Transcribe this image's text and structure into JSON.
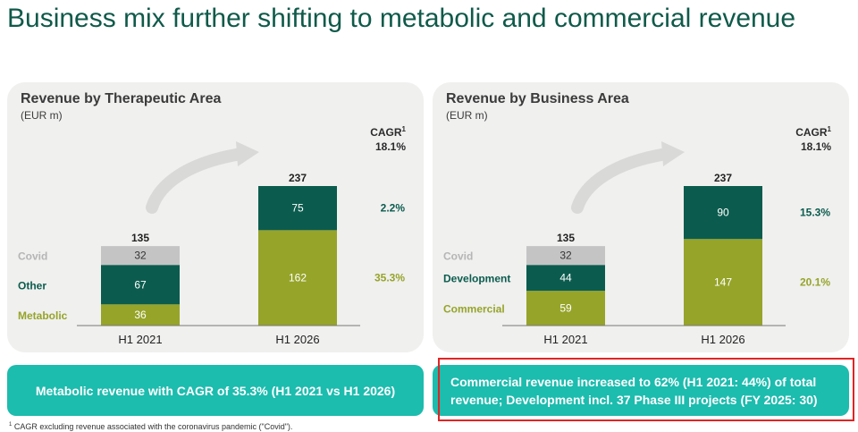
{
  "title": "Business mix further shifting to metabolic and commercial revenue",
  "colors": {
    "covid": "#c4c4c4",
    "dark_green": "#0b5c4e",
    "olive": "#96a429",
    "teal_box": "#1cbcae"
  },
  "chart_data": [
    {
      "type": "bar",
      "title": "Revenue by Therapeutic Area",
      "unit": "(EUR m)",
      "categories": [
        "H1 2021",
        "H1 2026"
      ],
      "stacked": true,
      "series": [
        {
          "name": "Metabolic",
          "values": [
            36,
            162
          ],
          "color": "#96a429"
        },
        {
          "name": "Other",
          "values": [
            67,
            75
          ],
          "color": "#0b5c4e"
        },
        {
          "name": "Covid",
          "values": [
            32,
            0
          ],
          "color": "#c4c4c4"
        }
      ],
      "totals": [
        "135",
        "237"
      ],
      "cagr_header": "CAGR",
      "cagr_total": "18.1%",
      "cagr_values": [
        {
          "series": "Other",
          "value": "2.2%",
          "color": "#0b5c4e"
        },
        {
          "series": "Metabolic",
          "value": "35.3%",
          "color": "#96a429"
        }
      ]
    },
    {
      "type": "bar",
      "title": "Revenue by Business Area",
      "unit": "(EUR m)",
      "categories": [
        "H1 2021",
        "H1 2026"
      ],
      "stacked": true,
      "series": [
        {
          "name": "Commercial",
          "values": [
            59,
            147
          ],
          "color": "#96a429"
        },
        {
          "name": "Development",
          "values": [
            44,
            90
          ],
          "color": "#0b5c4e"
        },
        {
          "name": "Covid",
          "values": [
            32,
            0
          ],
          "color": "#c4c4c4"
        }
      ],
      "totals": [
        "135",
        "237"
      ],
      "cagr_header": "CAGR",
      "cagr_total": "18.1%",
      "cagr_values": [
        {
          "series": "Development",
          "value": "15.3%",
          "color": "#0b5c4e"
        },
        {
          "series": "Commercial",
          "value": "20.1%",
          "color": "#96a429"
        }
      ]
    }
  ],
  "boxes": {
    "left": "Metabolic revenue with CAGR of 35.3% (H1 2021 vs H1 2026)",
    "right": "Commercial revenue increased to 62% (H1 2021: 44%) of total revenue; Development incl. 37 Phase III projects (FY 2025: 30)"
  },
  "footnote": {
    "marker": "1",
    "text": "CAGR excluding revenue associated with the coronavirus pandemic (\"Covid\")."
  }
}
